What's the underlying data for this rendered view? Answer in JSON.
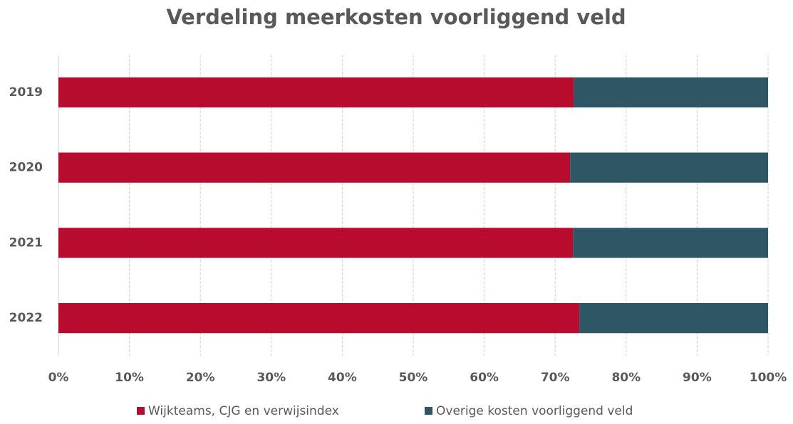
{
  "chart_data": {
    "type": "bar",
    "orientation": "horizontal",
    "stacked": true,
    "title": "Verdeling meerkosten voorliggend veld",
    "categories": [
      "2019",
      "2020",
      "2021",
      "2022"
    ],
    "series": [
      {
        "name": "Wijkteams, CJG en verwijsindex",
        "color": "#b80c2f",
        "values": [
          72.6,
          72.1,
          72.5,
          73.4
        ]
      },
      {
        "name": "Overige kosten voorliggend veld",
        "color": "#2f5665",
        "values": [
          27.4,
          27.9,
          27.5,
          26.6
        ]
      }
    ],
    "xlim": [
      0,
      100
    ],
    "xticks": [
      {
        "value": 0,
        "label": "0%"
      },
      {
        "value": 10,
        "label": "10%"
      },
      {
        "value": 20,
        "label": "20%"
      },
      {
        "value": 30,
        "label": "30%"
      },
      {
        "value": 40,
        "label": "40%"
      },
      {
        "value": 50,
        "label": "50%"
      },
      {
        "value": 60,
        "label": "60%"
      },
      {
        "value": 70,
        "label": "70%"
      },
      {
        "value": 80,
        "label": "80%"
      },
      {
        "value": 90,
        "label": "90%"
      },
      {
        "value": 100,
        "label": "100%"
      }
    ],
    "grid": true,
    "legend": "bottom"
  }
}
